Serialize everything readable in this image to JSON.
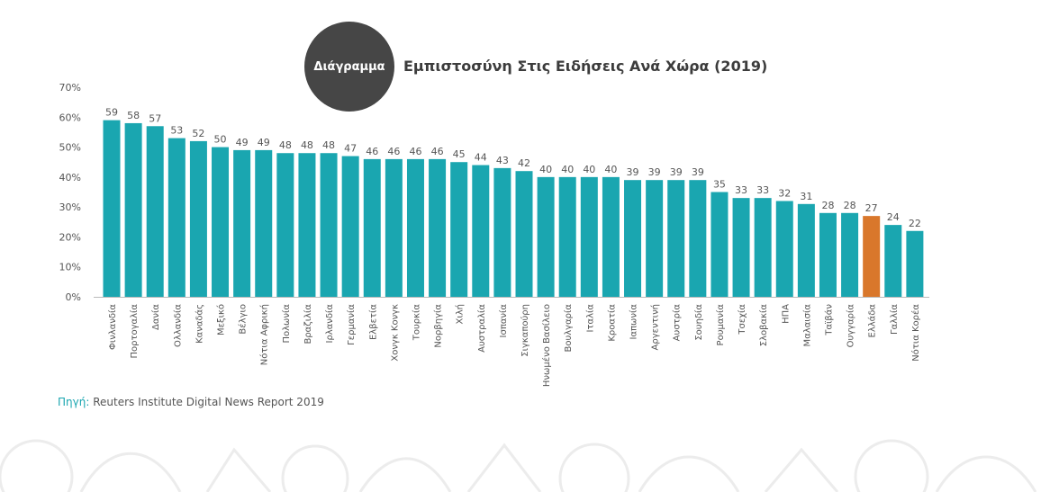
{
  "header": {
    "badge_label": "Διάγραμμα",
    "title": "Εμπιστοσύνη Στις Ειδήσεις Ανά Χώρα (2019)"
  },
  "source": {
    "label": "Πηγή:",
    "text": "Reuters Institute Digital News Report 2019"
  },
  "colors": {
    "bar": "#1aa6b0",
    "highlight": "#d9772b",
    "text": "#555555",
    "badge": "#464646"
  },
  "chart_data": {
    "type": "bar",
    "title": "Εμπιστοσύνη Στις Ειδήσεις Ανά Χώρα (2019)",
    "xlabel": "",
    "ylabel": "",
    "ylim": [
      0,
      70
    ],
    "yticks": [
      "0%",
      "10%",
      "20%",
      "30%",
      "40%",
      "50%",
      "60%",
      "70%"
    ],
    "grid": false,
    "highlight_category": "Ελλάδα",
    "categories": [
      "Φινλανδία",
      "Πορτογαλία",
      "Δανία",
      "Ολλανδία",
      "Καναδάς",
      "Μεξικό",
      "Βέλγιο",
      "Νότια Αφρική",
      "Πολωνία",
      "Βραζιλία",
      "Ιρλανδία",
      "Γερμανία",
      "Ελβετία",
      "Χονγκ Κονγκ",
      "Τουρκία",
      "Νορβηγία",
      "Χιλή",
      "Αυστραλία",
      "Ισπανία",
      "Σιγκαπούρη",
      "Ηνωμένο Βασίλειο",
      "Βουλγαρία",
      "Ιταλία",
      "Κροατία",
      "Ιαπωνία",
      "Αργεντινή",
      "Αυστρία",
      "Σουηδία",
      "Ρουμανία",
      "Τσεχία",
      "Σλοβακία",
      "ΗΠΑ",
      "Μαλαισία",
      "Ταϊβάν",
      "Ουγγαρία",
      "Ελλάδα",
      "Γαλλία",
      "Νότια Κορέα"
    ],
    "values": [
      59,
      58,
      57,
      53,
      52,
      50,
      49,
      49,
      48,
      48,
      48,
      47,
      46,
      46,
      46,
      46,
      45,
      44,
      43,
      42,
      40,
      40,
      40,
      40,
      39,
      39,
      39,
      39,
      35,
      33,
      33,
      32,
      31,
      28,
      28,
      27,
      24,
      22
    ]
  }
}
